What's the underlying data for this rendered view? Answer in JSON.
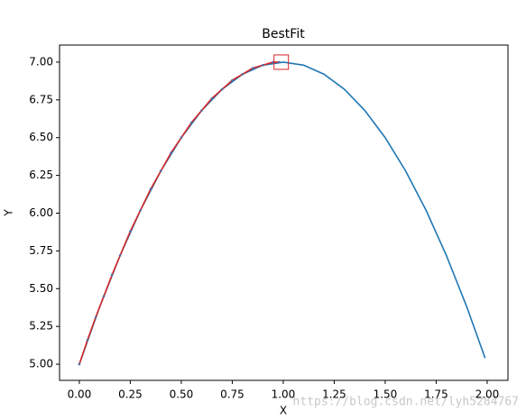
{
  "chart_data": {
    "type": "line",
    "title": "BestFit",
    "x_label": "X",
    "y_label": "Y",
    "xlim": [
      -0.097,
      2.102
    ],
    "ylim": [
      4.893,
      7.113
    ],
    "xticks": [
      {
        "value": 0,
        "label": "0.00"
      },
      {
        "value": 0.25,
        "label": "0.25"
      },
      {
        "value": 0.5,
        "label": "0.50"
      },
      {
        "value": 0.75,
        "label": "0.75"
      },
      {
        "value": 1,
        "label": "1.00"
      },
      {
        "value": 1.25,
        "label": "1.25"
      },
      {
        "value": 1.5,
        "label": "1.50"
      },
      {
        "value": 1.75,
        "label": "1.75"
      },
      {
        "value": 2,
        "label": "2.00"
      }
    ],
    "yticks": [
      {
        "value": 5,
        "label": "5.00"
      },
      {
        "value": 5.25,
        "label": "5.25"
      },
      {
        "value": 5.5,
        "label": "5.50"
      },
      {
        "value": 5.75,
        "label": "5.75"
      },
      {
        "value": 6,
        "label": "6.00"
      },
      {
        "value": 6.25,
        "label": "6.25"
      },
      {
        "value": 6.5,
        "label": "6.50"
      },
      {
        "value": 6.75,
        "label": "6.75"
      },
      {
        "value": 7,
        "label": "7.00"
      }
    ],
    "series": [
      {
        "color": "#1f77b4",
        "markers": false,
        "x": [
          0,
          0.1,
          0.2,
          0.3,
          0.4,
          0.5,
          0.6,
          0.7,
          0.8,
          0.9,
          1.0,
          1.1,
          1.2,
          1.3,
          1.4,
          1.5,
          1.6,
          1.7,
          1.8,
          1.9,
          1.99
        ],
        "values": [
          5,
          5.38,
          5.72,
          6.02,
          6.28,
          6.5,
          6.68,
          6.82,
          6.92,
          6.98,
          7.0,
          6.98,
          6.92,
          6.82,
          6.68,
          6.5,
          6.28,
          6.02,
          5.72,
          5.38,
          5.04
        ]
      },
      {
        "color": "#d62728",
        "markers": true,
        "marker_color": "#4a6fa5",
        "x": [
          0,
          0.04,
          0.08,
          0.12,
          0.16,
          0.2,
          0.25,
          0.3,
          0.35,
          0.4,
          0.45,
          0.5,
          0.55,
          0.6,
          0.65,
          0.7,
          0.75,
          0.8,
          0.85,
          0.9,
          0.95,
          0.98
        ],
        "values": [
          5,
          5.16,
          5.31,
          5.45,
          5.59,
          5.72,
          5.88,
          6.02,
          6.16,
          6.28,
          6.4,
          6.5,
          6.6,
          6.68,
          6.76,
          6.82,
          6.88,
          6.92,
          6.96,
          6.98,
          7.0,
          7.0
        ]
      }
    ],
    "highlight": {
      "x": 0.99,
      "y": 7.0,
      "color": "#d62728"
    },
    "watermark": "https://blog.csdn.net/lyh5284767"
  }
}
